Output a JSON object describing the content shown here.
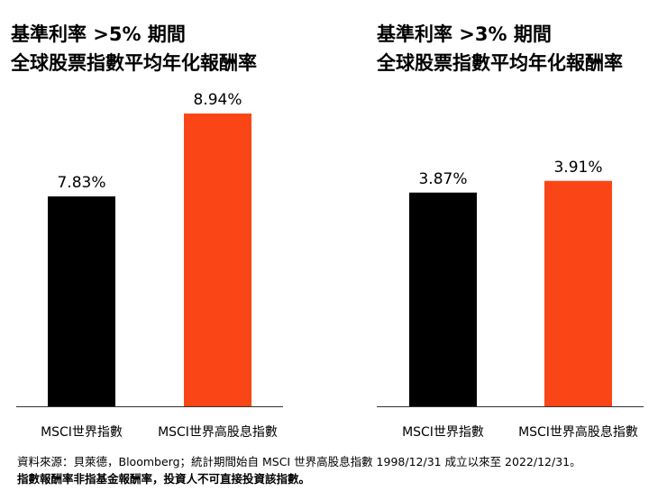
{
  "chart_data": [
    {
      "type": "bar",
      "title": [
        "基準利率 >5% 期間",
        "全球股票指數平均年化報酬率"
      ],
      "categories": [
        "MSCI世界指數",
        "MSCI世界高股息指數"
      ],
      "values": [
        7.83,
        8.94
      ],
      "labels": [
        "7.83%",
        "8.94%"
      ],
      "colors": [
        "#000000",
        "#FA4616"
      ],
      "ylim": [
        5.02,
        8.94
      ],
      "grid": false
    },
    {
      "type": "bar",
      "title": [
        "基準利率 >3% 期間",
        "全球股票指數平均年化報酬率"
      ],
      "categories": [
        "MSCI世界指數",
        "MSCI世界高股息指數"
      ],
      "values": [
        3.87,
        3.91
      ],
      "labels": [
        "3.87%",
        "3.91%"
      ],
      "colors": [
        "#000000",
        "#FA4616"
      ],
      "ylim": [
        3.14,
        4.14
      ],
      "grid": false
    }
  ],
  "footnote": {
    "source": "資料來源：貝萊德，Bloomberg；統計期間始自 MSCI 世界高股息指數 1998/12/31 成立以來至 2022/12/31。",
    "disclaimer": "指數報酬率非指基金報酬率，投資人不可直接投資該指數。"
  }
}
